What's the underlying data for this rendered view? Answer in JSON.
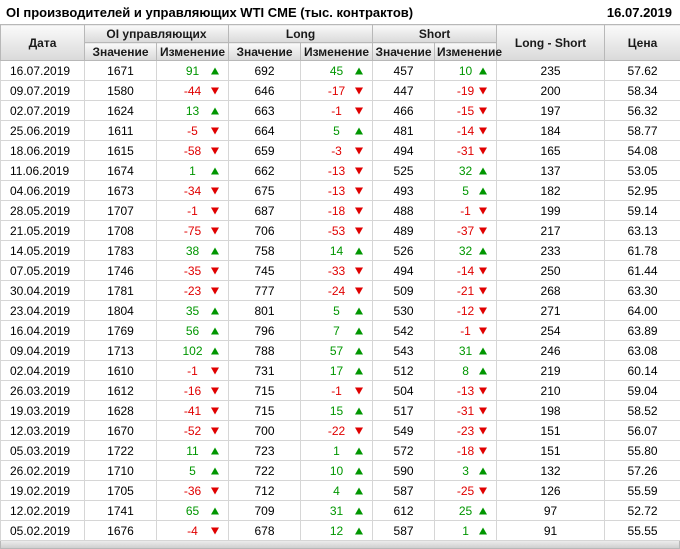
{
  "header": {
    "title": "OI производителей и управляющих WTI CME (тыс. контрактов)",
    "date": "16.07.2019"
  },
  "colors": {
    "positive": "#009600",
    "negative": "#e00000"
  },
  "table": {
    "head": {
      "date": "Дата",
      "oi_group": "OI управляющих",
      "long_group": "Long",
      "short_group": "Short",
      "long_short": "Long - Short",
      "price": "Цена",
      "value": "Значение",
      "change": "Изменение"
    },
    "rows": [
      [
        "16.07.2019",
        "1671",
        "91",
        "692",
        "45",
        "457",
        "10",
        "235",
        "57.62"
      ],
      [
        "09.07.2019",
        "1580",
        "-44",
        "646",
        "-17",
        "447",
        "-19",
        "200",
        "58.34"
      ],
      [
        "02.07.2019",
        "1624",
        "13",
        "663",
        "-1",
        "466",
        "-15",
        "197",
        "56.32"
      ],
      [
        "25.06.2019",
        "1611",
        "-5",
        "664",
        "5",
        "481",
        "-14",
        "184",
        "58.77"
      ],
      [
        "18.06.2019",
        "1615",
        "-58",
        "659",
        "-3",
        "494",
        "-31",
        "165",
        "54.08"
      ],
      [
        "11.06.2019",
        "1674",
        "1",
        "662",
        "-13",
        "525",
        "32",
        "137",
        "53.05"
      ],
      [
        "04.06.2019",
        "1673",
        "-34",
        "675",
        "-13",
        "493",
        "5",
        "182",
        "52.95"
      ],
      [
        "28.05.2019",
        "1707",
        "-1",
        "687",
        "-18",
        "488",
        "-1",
        "199",
        "59.14"
      ],
      [
        "21.05.2019",
        "1708",
        "-75",
        "706",
        "-53",
        "489",
        "-37",
        "217",
        "63.13"
      ],
      [
        "14.05.2019",
        "1783",
        "38",
        "758",
        "14",
        "526",
        "32",
        "233",
        "61.78"
      ],
      [
        "07.05.2019",
        "1746",
        "-35",
        "745",
        "-33",
        "494",
        "-14",
        "250",
        "61.44"
      ],
      [
        "30.04.2019",
        "1781",
        "-23",
        "777",
        "-24",
        "509",
        "-21",
        "268",
        "63.30"
      ],
      [
        "23.04.2019",
        "1804",
        "35",
        "801",
        "5",
        "530",
        "-12",
        "271",
        "64.00"
      ],
      [
        "16.04.2019",
        "1769",
        "56",
        "796",
        "7",
        "542",
        "-1",
        "254",
        "63.89"
      ],
      [
        "09.04.2019",
        "1713",
        "102",
        "788",
        "57",
        "543",
        "31",
        "246",
        "63.08"
      ],
      [
        "02.04.2019",
        "1610",
        "-1",
        "731",
        "17",
        "512",
        "8",
        "219",
        "60.14"
      ],
      [
        "26.03.2019",
        "1612",
        "-16",
        "715",
        "-1",
        "504",
        "-13",
        "210",
        "59.04"
      ],
      [
        "19.03.2019",
        "1628",
        "-41",
        "715",
        "15",
        "517",
        "-31",
        "198",
        "58.52"
      ],
      [
        "12.03.2019",
        "1670",
        "-52",
        "700",
        "-22",
        "549",
        "-23",
        "151",
        "56.07"
      ],
      [
        "05.03.2019",
        "1722",
        "11",
        "723",
        "1",
        "572",
        "-18",
        "151",
        "55.80"
      ],
      [
        "26.02.2019",
        "1710",
        "5",
        "722",
        "10",
        "590",
        "3",
        "132",
        "57.26"
      ],
      [
        "19.02.2019",
        "1705",
        "-36",
        "712",
        "4",
        "587",
        "-25",
        "126",
        "55.59"
      ],
      [
        "12.02.2019",
        "1741",
        "65",
        "709",
        "31",
        "612",
        "25",
        "97",
        "52.72"
      ],
      [
        "05.02.2019",
        "1676",
        "-4",
        "678",
        "12",
        "587",
        "1",
        "91",
        "55.55"
      ]
    ]
  }
}
